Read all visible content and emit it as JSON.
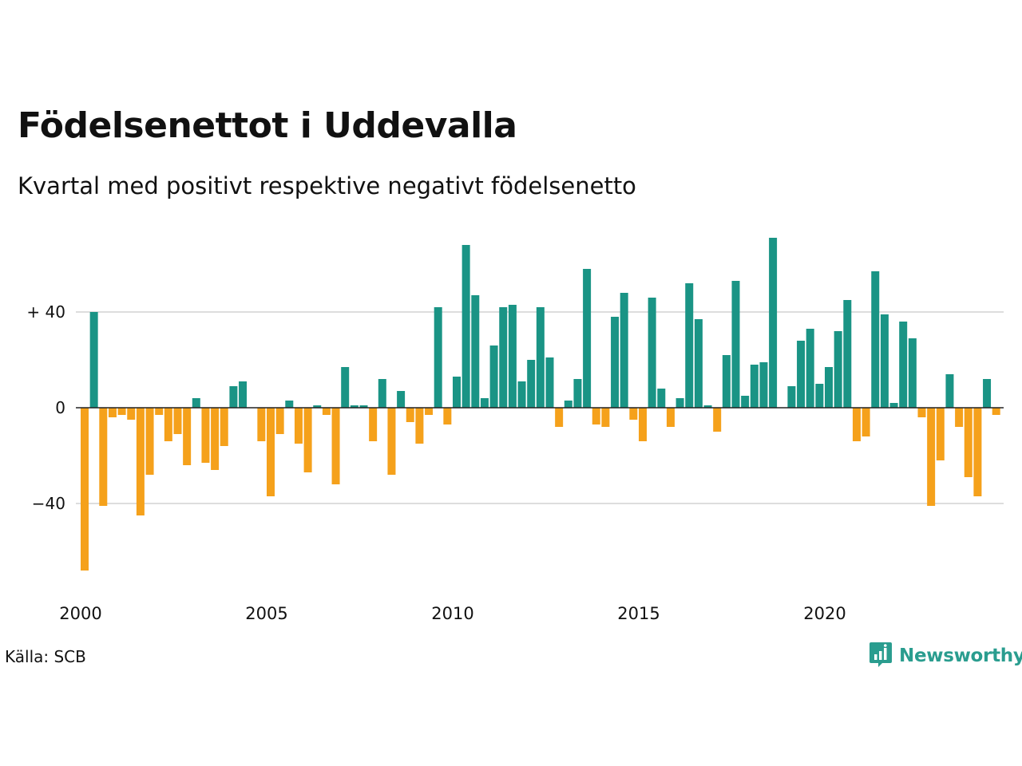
{
  "header": {
    "title": "Födelsenettot i Uddevalla",
    "subtitle": "Kvartal med positivt respektive negativt födelsenetto"
  },
  "footer": {
    "source": "Källa: SCB",
    "brand": "Newsworthy",
    "brand_icon": "newsworthy-logo-icon"
  },
  "colors": {
    "positive": "#1a9485",
    "negative": "#f5a11b",
    "grid": "#dddddd",
    "baseline": "#222222",
    "brand": "#2a9d8f"
  },
  "chart_data": {
    "type": "bar",
    "title": "Födelsenettot i Uddevalla",
    "subtitle": "Kvartal med positivt respektive negativt födelsenetto",
    "xlabel": "",
    "ylabel": "",
    "x_start": "2000 Q1",
    "period": "quarter",
    "x_ticks": [
      "2000",
      "2005",
      "2010",
      "2015",
      "2020"
    ],
    "y_ticks": [
      {
        "value": 40,
        "label": "+ 40"
      },
      {
        "value": 0,
        "label": "0"
      },
      {
        "value": -40,
        "label": "−40"
      }
    ],
    "ylim": [
      -70,
      72
    ],
    "grid": true,
    "values": [
      -68,
      40,
      -41,
      -4,
      -3,
      -5,
      -45,
      -28,
      -3,
      -14,
      -11,
      -24,
      4,
      -23,
      -26,
      -16,
      9,
      11,
      0,
      -14,
      -37,
      -11,
      3,
      -15,
      -27,
      1,
      -3,
      -32,
      17,
      1,
      1,
      -14,
      12,
      -28,
      7,
      -6,
      -15,
      -3,
      42,
      -7,
      13,
      68,
      47,
      4,
      26,
      42,
      43,
      11,
      20,
      42,
      21,
      -8,
      3,
      12,
      58,
      -7,
      -8,
      38,
      48,
      -5,
      -14,
      46,
      8,
      -8,
      4,
      52,
      37,
      1,
      -10,
      22,
      53,
      5,
      18,
      19,
      71,
      0,
      9,
      28,
      33,
      10,
      17,
      32,
      45,
      -14,
      -12,
      57,
      39,
      2,
      36,
      29,
      -4,
      -41,
      -22,
      14,
      -8,
      -29,
      -37,
      12,
      -3
    ]
  }
}
